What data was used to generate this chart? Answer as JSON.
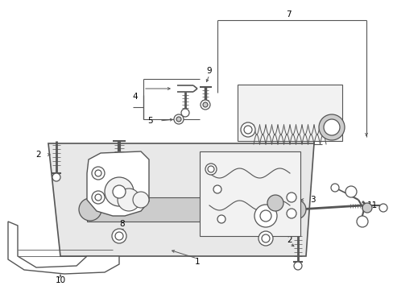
{
  "bg_color": "#ffffff",
  "line_color": "#555555",
  "label_color": "#000000",
  "fig_width": 4.89,
  "fig_height": 3.6,
  "dpi": 100,
  "gray_fill": "#e8e8e8",
  "light_gray": "#f2f2f2",
  "mid_gray": "#cccccc",
  "dark_gray": "#888888"
}
